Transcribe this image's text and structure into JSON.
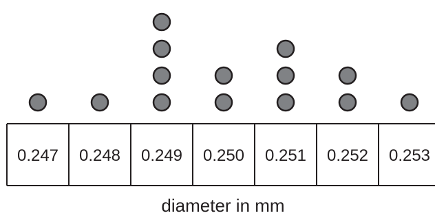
{
  "chart_data": {
    "type": "dot",
    "categories": [
      "0.247",
      "0.248",
      "0.249",
      "0.250",
      "0.251",
      "0.252",
      "0.253"
    ],
    "values": [
      1,
      1,
      4,
      2,
      3,
      2,
      1
    ],
    "title": "",
    "xlabel": "diameter in mm",
    "ylabel": "",
    "dot_color": "#808285",
    "outline_color": "#231f20"
  }
}
